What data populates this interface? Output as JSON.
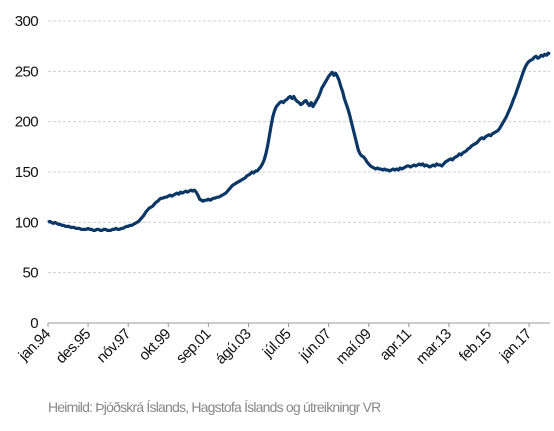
{
  "chart_data": {
    "type": "line",
    "note": "Heimild: Þjóðskrá Íslands, Hagstofa Íslands og útreikningr VR",
    "color": "#0b3766",
    "ylim": [
      0,
      300
    ],
    "yticks": [
      0,
      50,
      100,
      150,
      200,
      250,
      300
    ],
    "grid": true,
    "categories": [
      "jan.94",
      null,
      null,
      null,
      null,
      null,
      null,
      null,
      null,
      null,
      null,
      null,
      null,
      null,
      null,
      null,
      null,
      null,
      null,
      null,
      null,
      null,
      null,
      "des.95",
      null,
      null,
      null,
      null,
      null,
      null,
      null,
      null,
      null,
      null,
      null,
      null,
      null,
      null,
      null,
      null,
      null,
      null,
      null,
      null,
      null,
      null,
      "nóv.97",
      null,
      null,
      null,
      null,
      null,
      null,
      null,
      null,
      null,
      null,
      null,
      null,
      null,
      null,
      null,
      null,
      null,
      null,
      null,
      null,
      null,
      null,
      "okt.99",
      null,
      null,
      null,
      null,
      null,
      null,
      null,
      null,
      null,
      null,
      null,
      null,
      null,
      null,
      null,
      null,
      null,
      null,
      null,
      null,
      null,
      null,
      "sep.01",
      null,
      null,
      null,
      null,
      null,
      null,
      null,
      null,
      null,
      null,
      null,
      null,
      null,
      null,
      null,
      null,
      null,
      null,
      null,
      null,
      null,
      null,
      "ágú.03",
      null,
      null,
      null,
      null,
      null,
      null,
      null,
      null,
      null,
      null,
      null,
      null,
      null,
      null,
      null,
      null,
      null,
      null,
      null,
      null,
      null,
      null,
      "júl.05",
      null,
      null,
      null,
      null,
      null,
      null,
      null,
      null,
      null,
      null,
      null,
      null,
      null,
      null,
      null,
      null,
      null,
      null,
      null,
      null,
      null,
      null,
      "jún.07",
      null,
      null,
      null,
      null,
      null,
      null,
      null,
      null,
      null,
      null,
      null,
      null,
      null,
      null,
      null,
      null,
      null,
      null,
      null,
      null,
      null,
      null,
      "maí.09",
      null,
      null,
      null,
      null,
      null,
      null,
      null,
      null,
      null,
      null,
      null,
      null,
      null,
      null,
      null,
      null,
      null,
      null,
      null,
      null,
      null,
      null,
      "apr.11",
      null,
      null,
      null,
      null,
      null,
      null,
      null,
      null,
      null,
      null,
      null,
      null,
      null,
      null,
      null,
      null,
      null,
      null,
      null,
      null,
      null,
      null,
      "mar.13",
      null,
      null,
      null,
      null,
      null,
      null,
      null,
      null,
      null,
      null,
      null,
      null,
      null,
      null,
      null,
      null,
      null,
      null,
      null,
      null,
      null,
      null,
      "feb.15",
      null,
      null,
      null,
      null,
      null,
      null,
      null,
      null,
      null,
      null,
      null,
      null,
      null,
      null,
      null,
      null,
      null,
      null,
      null,
      null,
      null,
      null,
      "jan.17",
      null,
      null,
      null,
      null,
      null,
      null,
      null,
      null,
      null,
      null,
      null,
      null
    ],
    "values": [
      100,
      101,
      100,
      99,
      100,
      99,
      98,
      98,
      97,
      97,
      96,
      96,
      96,
      95,
      95,
      95,
      94,
      94,
      94,
      93,
      93,
      93,
      93,
      94,
      93,
      93,
      92,
      92,
      93,
      93,
      92,
      92,
      93,
      93,
      92,
      92,
      92,
      93,
      93,
      94,
      93,
      93,
      94,
      94,
      95,
      96,
      96,
      97,
      97,
      98,
      99,
      100,
      101,
      103,
      105,
      107,
      110,
      112,
      114,
      115,
      116,
      118,
      120,
      121,
      123,
      124,
      124,
      125,
      125,
      126,
      127,
      126,
      127,
      128,
      129,
      128,
      130,
      129,
      130,
      131,
      130,
      131,
      132,
      131,
      132,
      130,
      127,
      123,
      122,
      121,
      122,
      122,
      123,
      122,
      123,
      124,
      124,
      125,
      125,
      126,
      127,
      128,
      129,
      131,
      133,
      135,
      137,
      138,
      139,
      140,
      141,
      142,
      143,
      144,
      146,
      147,
      148,
      150,
      149,
      151,
      151,
      153,
      155,
      158,
      162,
      168,
      176,
      186,
      196,
      205,
      211,
      215,
      217,
      219,
      220,
      219,
      221,
      222,
      224,
      225,
      223,
      225,
      222,
      220,
      219,
      217,
      218,
      220,
      221,
      218,
      216,
      219,
      215,
      218,
      221,
      224,
      228,
      233,
      236,
      239,
      242,
      245,
      247,
      249,
      246,
      248,
      245,
      241,
      235,
      230,
      223,
      218,
      213,
      207,
      200,
      193,
      186,
      179,
      172,
      168,
      166,
      165,
      163,
      160,
      158,
      156,
      155,
      154,
      153,
      154,
      153,
      153,
      152,
      153,
      152,
      152,
      151,
      152,
      153,
      152,
      153,
      152,
      154,
      153,
      154,
      155,
      156,
      156,
      155,
      156,
      157,
      156,
      157,
      158,
      157,
      158,
      156,
      157,
      156,
      155,
      156,
      157,
      156,
      158,
      157,
      157,
      156,
      158,
      160,
      161,
      162,
      163,
      162,
      164,
      165,
      166,
      168,
      167,
      169,
      170,
      171,
      173,
      174,
      176,
      177,
      178,
      179,
      181,
      183,
      184,
      183,
      185,
      186,
      187,
      186,
      188,
      189,
      190,
      191,
      193,
      196,
      199,
      202,
      205,
      209,
      213,
      217,
      222,
      226,
      231,
      236,
      241,
      246,
      251,
      255,
      258,
      260,
      261,
      262,
      264,
      265,
      263,
      264,
      266,
      265,
      267,
      266,
      268,
      267
    ]
  }
}
